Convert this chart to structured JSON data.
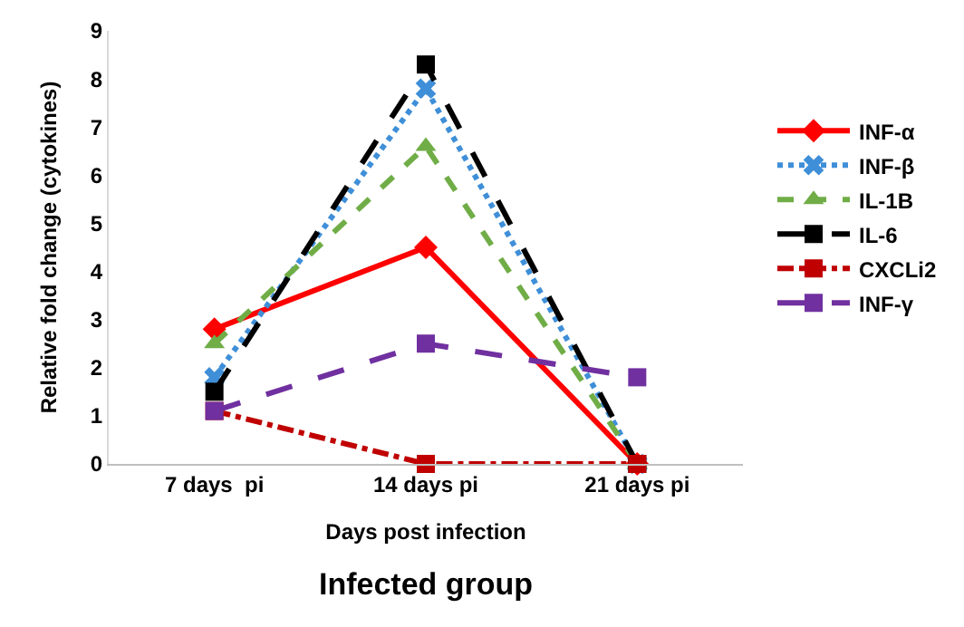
{
  "chart_data": {
    "type": "line",
    "xlabel": "Days post infection",
    "ylabel": "Relative fold change (cytokines)",
    "categories": [
      "7 days  pi",
      "14 days pi",
      "21 days pi"
    ],
    "series": [
      {
        "name": "INF-α",
        "color": "#ff0000",
        "values": [
          2.8,
          4.5,
          0
        ],
        "marker": "diamond",
        "line_style": "solid"
      },
      {
        "name": "INF-β",
        "color": "#3f8fd8",
        "values": [
          1.8,
          7.8,
          0
        ],
        "marker": "cross",
        "line_style": "dotted"
      },
      {
        "name": "IL-1B",
        "color": "#70ad47",
        "values": [
          2.5,
          6.6,
          0
        ],
        "marker": "triangle",
        "line_style": "dashed"
      },
      {
        "name": "IL-6",
        "color": "#000000",
        "values": [
          1.5,
          8.3,
          0
        ],
        "marker": "square",
        "line_style": "longdash"
      },
      {
        "name": "CXCLi2",
        "color": "#c00000",
        "values": [
          1.1,
          0,
          0
        ],
        "marker": "square",
        "line_style": "dashdot"
      },
      {
        "name": "INF-γ",
        "color": "#7030a0",
        "values": [
          1.1,
          2.5,
          1.8
        ],
        "marker": "square",
        "line_style": "longdash"
      }
    ],
    "ylim": [
      0,
      9
    ],
    "yticks": [
      0,
      1,
      2,
      3,
      4,
      5,
      6,
      7,
      8,
      9
    ],
    "legend": "right",
    "annotations": [
      "Infected group"
    ]
  }
}
